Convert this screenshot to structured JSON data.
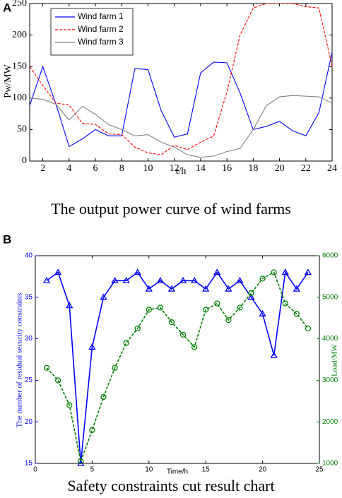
{
  "chart_data": [
    {
      "type": "line",
      "panel_label": "A",
      "caption": "The output power curve of wind farms",
      "x_label": "t/h",
      "y_label": "Pw/MW",
      "x": [
        1,
        2,
        3,
        4,
        5,
        6,
        7,
        8,
        9,
        10,
        11,
        12,
        13,
        14,
        15,
        16,
        17,
        18,
        19,
        20,
        21,
        22,
        23,
        24
      ],
      "xlim": [
        1,
        24
      ],
      "xticks": [
        2,
        4,
        6,
        8,
        10,
        12,
        14,
        16,
        18,
        20,
        22,
        24
      ],
      "ylim": [
        0,
        250
      ],
      "yticks": [
        0,
        50,
        100,
        150,
        200,
        250
      ],
      "legend": "upper left",
      "series": [
        {
          "name": "Wind farm 1",
          "color": "#0000ff",
          "line_style": "solid",
          "values": [
            88,
            150,
            90,
            23,
            35,
            50,
            40,
            40,
            147,
            145,
            80,
            38,
            43,
            140,
            157,
            156,
            108,
            50,
            55,
            63,
            48,
            40,
            77,
            173
          ]
        },
        {
          "name": "Wind farm 2",
          "color": "#ff0000",
          "line_style": "dashed",
          "values": [
            150,
            120,
            92,
            89,
            60,
            58,
            43,
            42,
            22,
            13,
            10,
            25,
            18,
            30,
            40,
            110,
            200,
            243,
            250,
            250,
            250,
            245,
            243,
            150
          ]
        },
        {
          "name": "Wind farm 3",
          "color": "#808080",
          "line_style": "solid",
          "values": [
            100,
            98,
            90,
            65,
            87,
            74,
            58,
            50,
            40,
            42,
            30,
            22,
            10,
            6,
            8,
            15,
            20,
            50,
            88,
            102,
            104,
            103,
            102,
            92
          ]
        }
      ]
    },
    {
      "type": "line",
      "panel_label": "B",
      "caption": "Safety constraints cut result chart",
      "x_label": "Time/h",
      "y_label": "The number of residual security constraints",
      "y2_label": "Load/MW",
      "x": [
        1,
        2,
        3,
        4,
        5,
        6,
        7,
        8,
        9,
        10,
        11,
        12,
        13,
        14,
        15,
        16,
        17,
        18,
        19,
        20,
        21,
        22,
        23,
        24
      ],
      "xlim": [
        0,
        25
      ],
      "xticks": [
        0,
        5,
        10,
        15,
        20,
        25
      ],
      "ylim": [
        15,
        40
      ],
      "yticks": [
        15,
        20,
        25,
        30,
        35,
        40
      ],
      "y2lim": [
        1000,
        6000
      ],
      "y2ticks": [
        1000,
        2000,
        3000,
        4000,
        5000,
        6000
      ],
      "axis_colors": true,
      "series": [
        {
          "color": "#0000ff",
          "line_style": "solid",
          "marker": "triangle",
          "values": [
            37,
            38,
            34,
            15,
            29,
            35,
            37,
            37,
            38,
            36,
            37,
            36,
            37,
            37,
            36,
            38,
            36,
            37,
            35,
            33,
            28,
            38,
            36,
            38
          ]
        },
        {
          "color": "#008000",
          "line_style": "dashed",
          "marker": "circle",
          "axis": "y2",
          "values": [
            3300,
            3000,
            2400,
            1050,
            1800,
            2600,
            3300,
            3900,
            4250,
            4700,
            4750,
            4400,
            4100,
            3800,
            4700,
            4850,
            4450,
            4750,
            5100,
            5450,
            5600,
            4850,
            4600,
            4250
          ]
        }
      ]
    }
  ]
}
